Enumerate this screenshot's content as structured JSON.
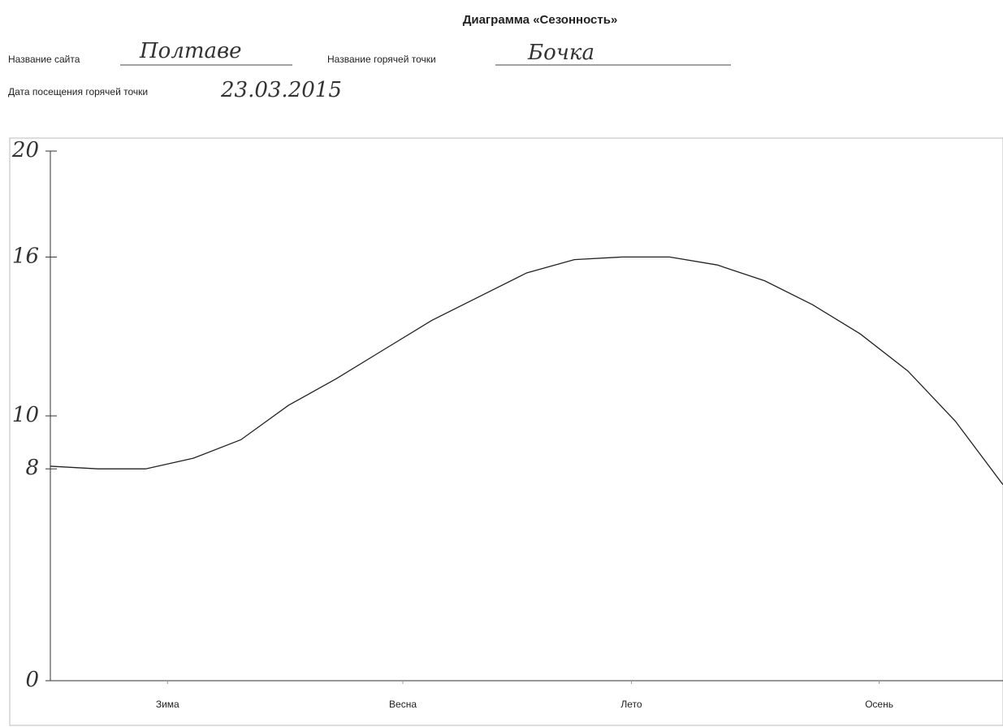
{
  "form": {
    "site_label": "Название сайта",
    "site_value": "Полтаве",
    "spot_label": "Название горячей точки",
    "spot_value": "Бочка",
    "date_label": "Дата посещения горячей точки",
    "date_value": "23.03.2015"
  },
  "chart_data": {
    "type": "line",
    "title": "Диаграмма «Сезонность»",
    "x": [
      0,
      5,
      10,
      15,
      20,
      25,
      30,
      35,
      40,
      45,
      50,
      55,
      60,
      65,
      70,
      75,
      80,
      85,
      90,
      95,
      100
    ],
    "series": [
      {
        "color": "#222222",
        "values": [
          8.1,
          8.0,
          8.0,
          8.4,
          9.1,
          10.4,
          11.4,
          12.5,
          13.6,
          14.5,
          15.4,
          15.9,
          16.0,
          16.0,
          15.7,
          15.1,
          14.2,
          13.1,
          11.7,
          9.8,
          7.4
        ]
      }
    ],
    "xlim": [
      0,
      100
    ],
    "xticks": [
      {
        "value": 12.3,
        "label": "Зима"
      },
      {
        "value": 37,
        "label": "Весна"
      },
      {
        "value": 61,
        "label": "Лето"
      },
      {
        "value": 87,
        "label": "Осень"
      }
    ],
    "ylim": [
      0,
      20
    ],
    "yticks": [
      0,
      8,
      10,
      16,
      20
    ]
  }
}
